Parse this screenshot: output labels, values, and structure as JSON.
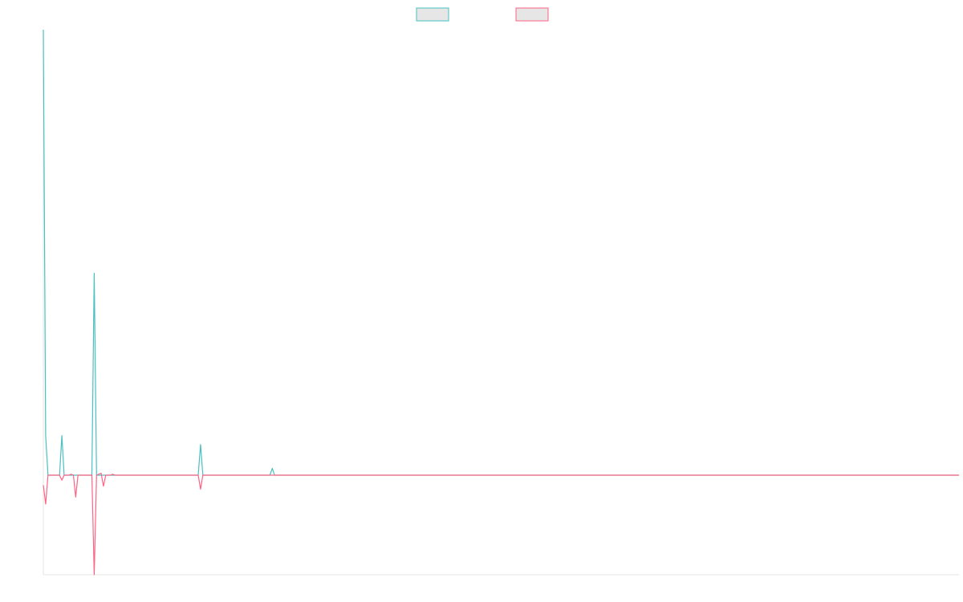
{
  "colors": {
    "series_a": "#4bc0c0",
    "series_b": "#ff6384",
    "legend_fill": "#e6e6e6",
    "axis": "#e5e5e5",
    "background": "#ffffff"
  },
  "legend": {
    "position": "top-center",
    "items": [
      {
        "label": "",
        "color": "#4bc0c0"
      },
      {
        "label": "",
        "color": "#ff6384"
      }
    ]
  },
  "chart_data": {
    "type": "line",
    "title": "",
    "xlabel": "",
    "ylabel": "",
    "grid": false,
    "xlim": [
      0,
      396
    ],
    "ylim": [
      -1,
      4.5
    ],
    "series": [
      {
        "color": "#4bc0c0",
        "points": [
          [
            0,
            4.5
          ],
          [
            1,
            0.4
          ],
          [
            2,
            0
          ],
          [
            7,
            0
          ],
          [
            8,
            0.4
          ],
          [
            9,
            0
          ],
          [
            21,
            0
          ],
          [
            22,
            2.04
          ],
          [
            23,
            0
          ],
          [
            67,
            0
          ],
          [
            68,
            0.31
          ],
          [
            69,
            0
          ],
          [
            98,
            0
          ],
          [
            99,
            0.07
          ],
          [
            100,
            0
          ],
          [
            396,
            0
          ]
        ]
      },
      {
        "color": "#ff6384",
        "points": [
          [
            0,
            -0.1
          ],
          [
            1,
            -0.29
          ],
          [
            2,
            0
          ],
          [
            7,
            0
          ],
          [
            8,
            -0.05
          ],
          [
            9,
            0
          ],
          [
            11,
            0
          ],
          [
            12,
            0.01
          ],
          [
            13,
            0
          ],
          [
            14,
            -0.22
          ],
          [
            15,
            0
          ],
          [
            21,
            0
          ],
          [
            22,
            -1
          ],
          [
            23,
            0
          ],
          [
            25,
            0.02
          ],
          [
            26,
            -0.11
          ],
          [
            27,
            0
          ],
          [
            29,
            0
          ],
          [
            30,
            0.01
          ],
          [
            31,
            0
          ],
          [
            67,
            0
          ],
          [
            68,
            -0.14
          ],
          [
            69,
            0
          ],
          [
            396,
            0
          ]
        ]
      }
    ]
  }
}
